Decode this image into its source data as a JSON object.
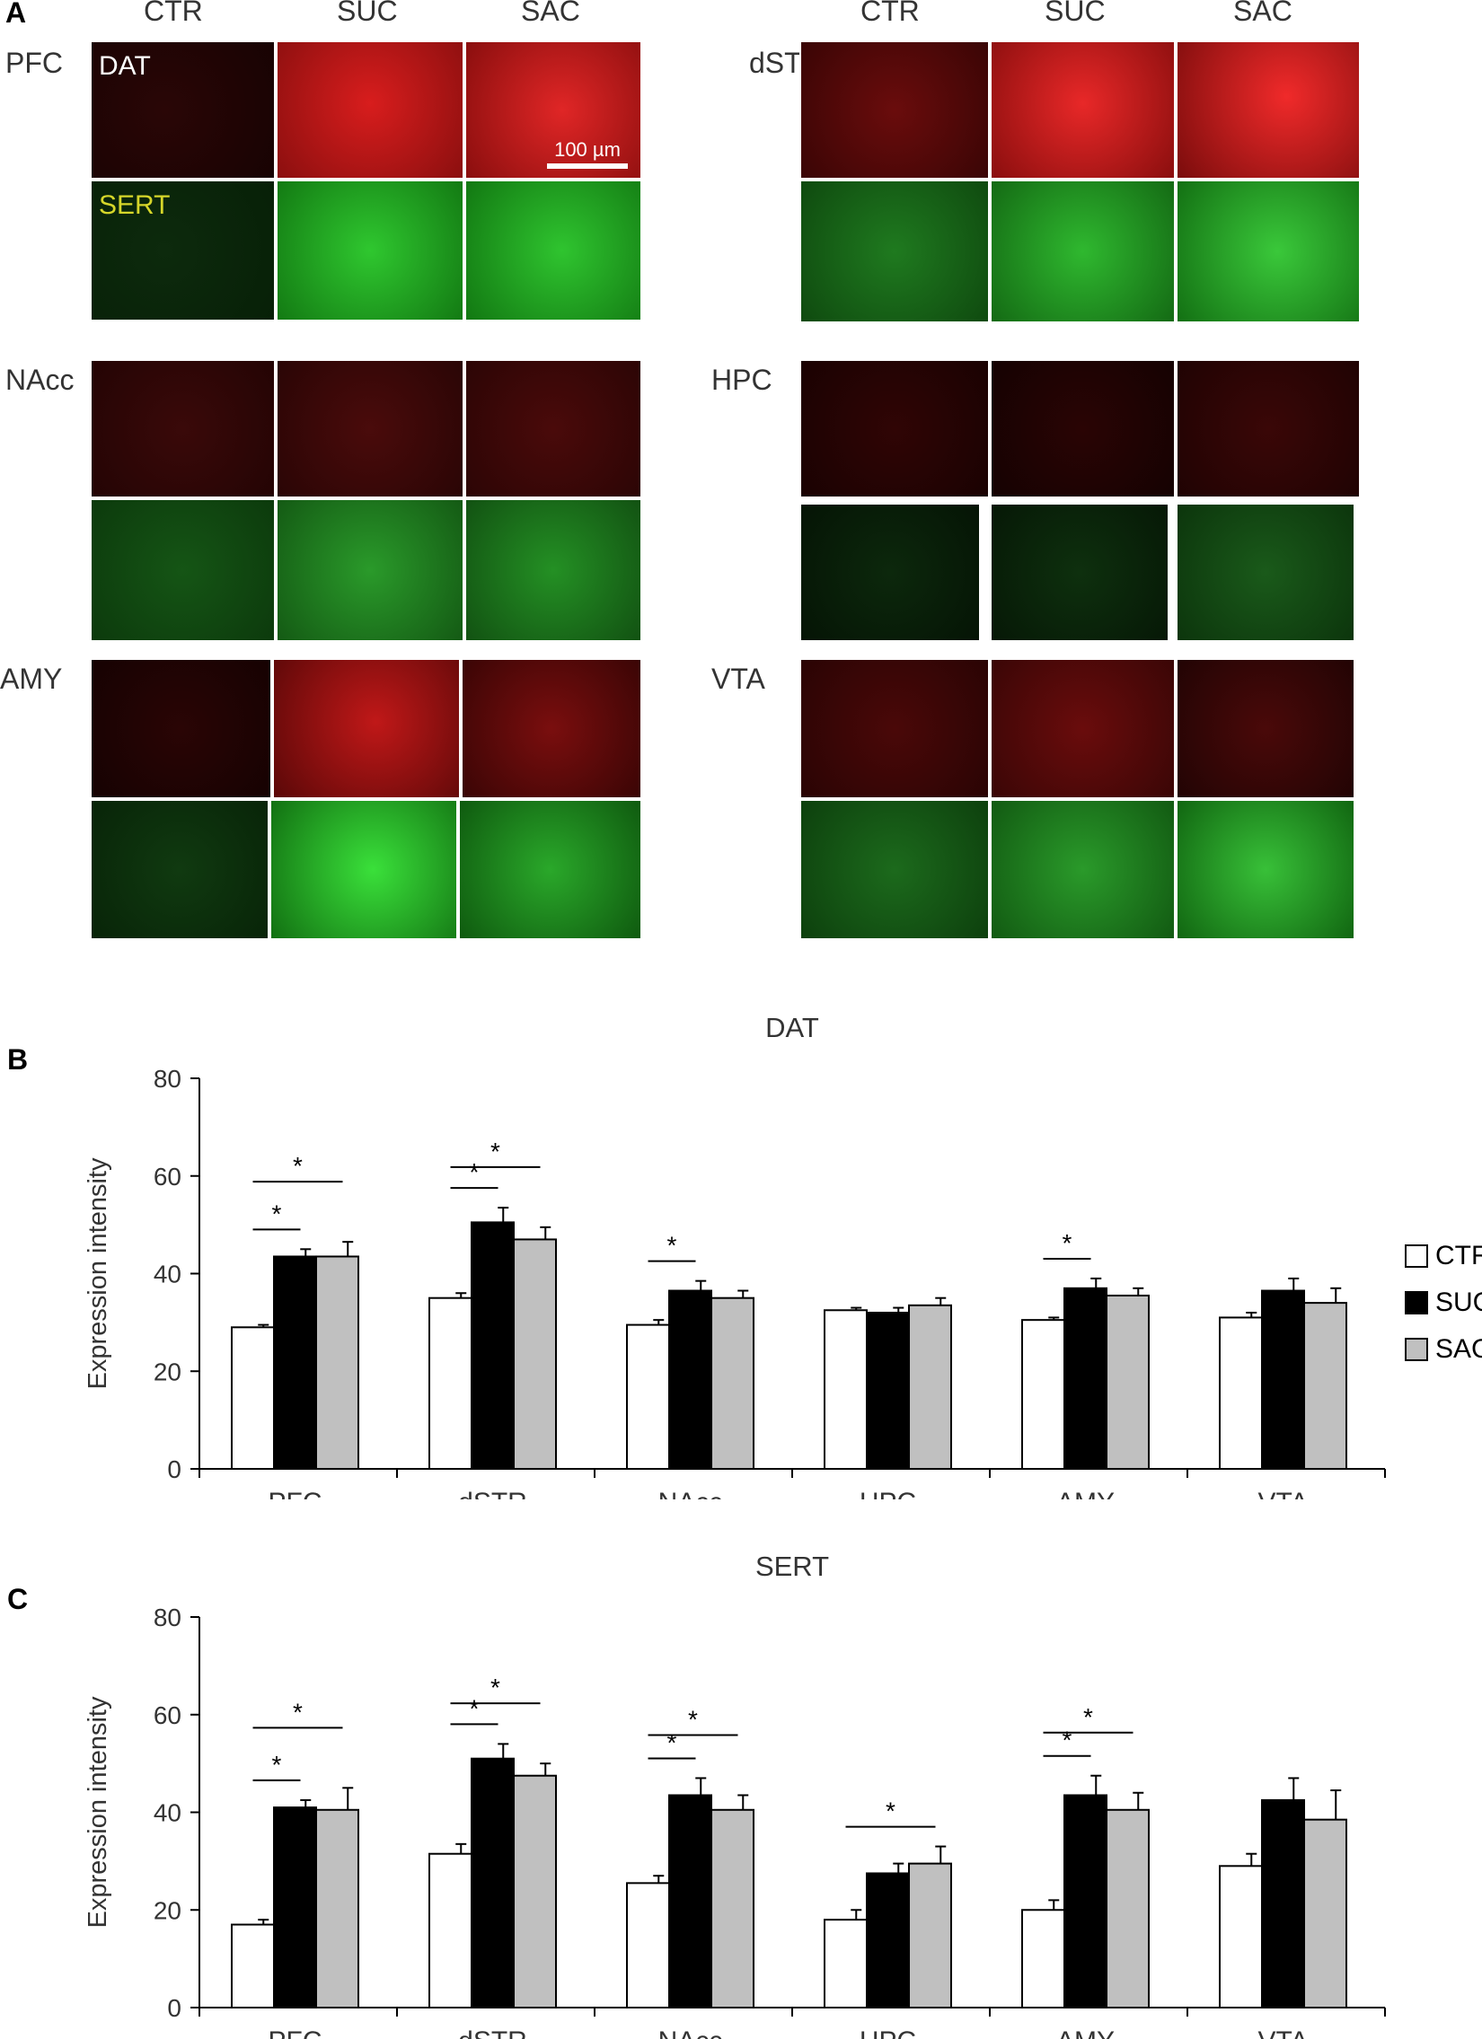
{
  "panel_a": {
    "label": "A",
    "left_columns": [
      "CTR",
      "SUC",
      "SAC"
    ],
    "right_columns": [
      "CTR",
      "SUC",
      "SAC"
    ],
    "regions": [
      "PFC",
      "dSTR",
      "NAcc",
      "HPC",
      "AMY",
      "VTA"
    ],
    "dat_label": "DAT",
    "sert_label": "SERT",
    "scale_bar": "100 µm"
  },
  "chart_data": [
    {
      "panel": "B",
      "type": "bar",
      "title": "DAT",
      "ylabel": "Expression intensity",
      "xlabel": "",
      "ylim": [
        0,
        80
      ],
      "yticks": [
        0,
        20,
        40,
        60,
        80
      ],
      "categories": [
        "PFC",
        "dSTR",
        "NAcc",
        "HPC",
        "AMY",
        "VTA"
      ],
      "series": [
        {
          "name": "CTR",
          "color": "#ffffff",
          "values": [
            29,
            35,
            29.5,
            32.5,
            30.5,
            31
          ],
          "errors": [
            0.5,
            1,
            1,
            0.5,
            0.5,
            1
          ]
        },
        {
          "name": "SUC",
          "color": "#000000",
          "values": [
            43.5,
            50.5,
            36.5,
            32,
            37,
            36.5
          ],
          "errors": [
            1.5,
            3,
            2,
            1,
            2,
            2.5
          ]
        },
        {
          "name": "SAC",
          "color": "#c0c0c0",
          "values": [
            43.5,
            47,
            35,
            33.5,
            35.5,
            34
          ],
          "errors": [
            3,
            2.5,
            1.5,
            1.5,
            1.5,
            3
          ]
        }
      ],
      "significance": [
        {
          "category": "PFC",
          "pair": [
            "CTR",
            "SUC"
          ],
          "label": "*"
        },
        {
          "category": "PFC",
          "pair": [
            "CTR",
            "SAC"
          ],
          "label": "*"
        },
        {
          "category": "dSTR",
          "pair": [
            "CTR",
            "SUC"
          ],
          "label": "*"
        },
        {
          "category": "dSTR",
          "pair": [
            "CTR",
            "SAC"
          ],
          "label": "*"
        },
        {
          "category": "NAcc",
          "pair": [
            "CTR",
            "SUC"
          ],
          "label": "*"
        },
        {
          "category": "AMY",
          "pair": [
            "CTR",
            "SUC"
          ],
          "label": "*"
        }
      ],
      "legend": [
        "CTR",
        "SUC",
        "SAC"
      ],
      "legend_position": "right",
      "grid": false
    },
    {
      "panel": "C",
      "type": "bar",
      "title": "SERT",
      "ylabel": "Expression intensity",
      "xlabel": "",
      "ylim": [
        0,
        80
      ],
      "yticks": [
        0,
        20,
        40,
        60,
        80
      ],
      "categories": [
        "PFC",
        "dSTR",
        "NAcc",
        "HPC",
        "AMY",
        "VTA"
      ],
      "series": [
        {
          "name": "CTR",
          "color": "#ffffff",
          "values": [
            17,
            31.5,
            25.5,
            18,
            20,
            29
          ],
          "errors": [
            1,
            2,
            1.5,
            2,
            2,
            2.5
          ]
        },
        {
          "name": "SUC",
          "color": "#000000",
          "values": [
            41,
            51,
            43.5,
            27.5,
            43.5,
            42.5
          ],
          "errors": [
            1.5,
            3,
            3.5,
            2,
            4,
            4.5
          ]
        },
        {
          "name": "SAC",
          "color": "#c0c0c0",
          "values": [
            40.5,
            47.5,
            40.5,
            29.5,
            40.5,
            38.5
          ],
          "errors": [
            4.5,
            2.5,
            3,
            3.5,
            3.5,
            6
          ]
        }
      ],
      "significance": [
        {
          "category": "PFC",
          "pair": [
            "CTR",
            "SUC"
          ],
          "label": "*"
        },
        {
          "category": "PFC",
          "pair": [
            "CTR",
            "SAC"
          ],
          "label": "*"
        },
        {
          "category": "dSTR",
          "pair": [
            "CTR",
            "SUC"
          ],
          "label": "*"
        },
        {
          "category": "dSTR",
          "pair": [
            "CTR",
            "SAC"
          ],
          "label": "*"
        },
        {
          "category": "NAcc",
          "pair": [
            "CTR",
            "SUC"
          ],
          "label": "*"
        },
        {
          "category": "NAcc",
          "pair": [
            "CTR",
            "SAC"
          ],
          "label": "*"
        },
        {
          "category": "HPC",
          "pair": [
            "CTR",
            "SAC"
          ],
          "label": "*"
        },
        {
          "category": "AMY",
          "pair": [
            "CTR",
            "SUC"
          ],
          "label": "*"
        },
        {
          "category": "AMY",
          "pair": [
            "CTR",
            "SAC"
          ],
          "label": "*"
        }
      ],
      "grid": false
    }
  ]
}
